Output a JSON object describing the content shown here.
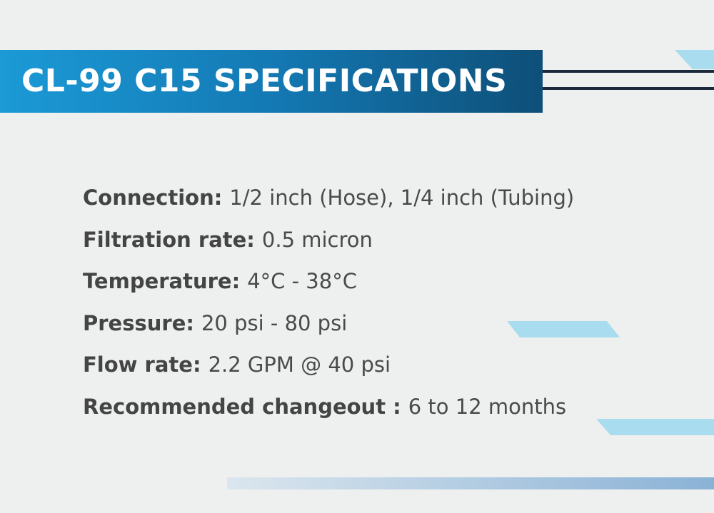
{
  "header": {
    "title": "CL-99 C15 SPECIFICATIONS"
  },
  "specs": [
    {
      "label": "Connection:",
      "value": "1/2 inch (Hose), 1/4 inch (Tubing)"
    },
    {
      "label": "Filtration rate:",
      "value": "0.5 micron"
    },
    {
      "label": "Temperature:",
      "value": "4°C - 38°C"
    },
    {
      "label": "Pressure:",
      "value": "20 psi - 80 psi"
    },
    {
      "label": "Flow rate:",
      "value": "2.2 GPM @ 40 psi"
    },
    {
      "label": "Recommended changeout :",
      "value": "6 to 12 months"
    }
  ]
}
